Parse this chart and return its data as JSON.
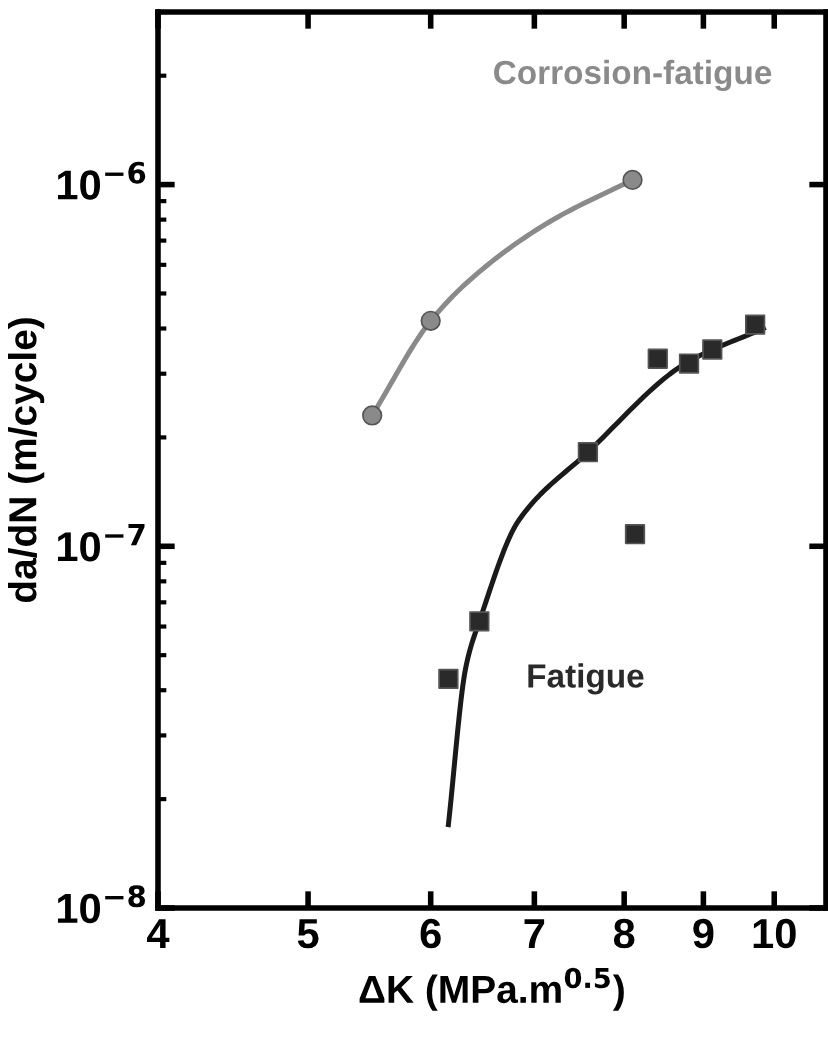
{
  "chart_data": {
    "type": "scatter",
    "xlabel": "ΔK (MPa.m$^{0.5}$)",
    "ylabel": "da/dN (m/cycle)",
    "log": "xy",
    "grid": false,
    "legend": false,
    "xlim": [
      4,
      10.8
    ],
    "xticks": [
      4,
      5,
      6,
      7,
      8,
      9,
      10
    ],
    "ylim": [
      1e-08,
      3e-06
    ],
    "yticks": [
      {
        "value": 1e-08,
        "label": "10$^{−8}$"
      },
      {
        "value": 1e-07,
        "label": "10$^{−7}$"
      },
      {
        "value": 1e-06,
        "label": "10$^{−6}$"
      }
    ],
    "series": [
      {
        "name": "Corrosion-fatigue",
        "marker": "circle",
        "color": "#8a8a8a",
        "x": [
          5.5,
          6.0,
          8.1
        ],
        "values": [
          2.3e-07,
          4.2e-07,
          1.03e-06
        ]
      },
      {
        "type": "line",
        "marker": "none",
        "line_style": "solid",
        "color": "#8a8a8a",
        "x": [
          5.5,
          6.0,
          6.5,
          7.2,
          8.1
        ],
        "values": [
          2.3e-07,
          4.2e-07,
          5.9e-07,
          8e-07,
          1.03e-06
        ]
      },
      {
        "name": "Fatigue",
        "marker": "square",
        "color": "#2a2a2a",
        "x": [
          6.16,
          6.45,
          7.58,
          8.13,
          8.41,
          8.81,
          9.12,
          9.72
        ],
        "values": [
          4.3e-08,
          6.2e-08,
          1.82e-07,
          1.08e-07,
          3.3e-07,
          3.2e-07,
          3.5e-07,
          4.1e-07
        ]
      },
      {
        "type": "line",
        "marker": "none",
        "line_style": "solid",
        "color": "#1a1a1a",
        "x": [
          6.16,
          6.32,
          6.45,
          6.84,
          7.58,
          8.76,
          9.84
        ],
        "values": [
          1.7e-08,
          4.6e-08,
          6.2e-08,
          1.18e-07,
          1.82e-07,
          3.2e-07,
          4e-07
        ]
      }
    ]
  }
}
